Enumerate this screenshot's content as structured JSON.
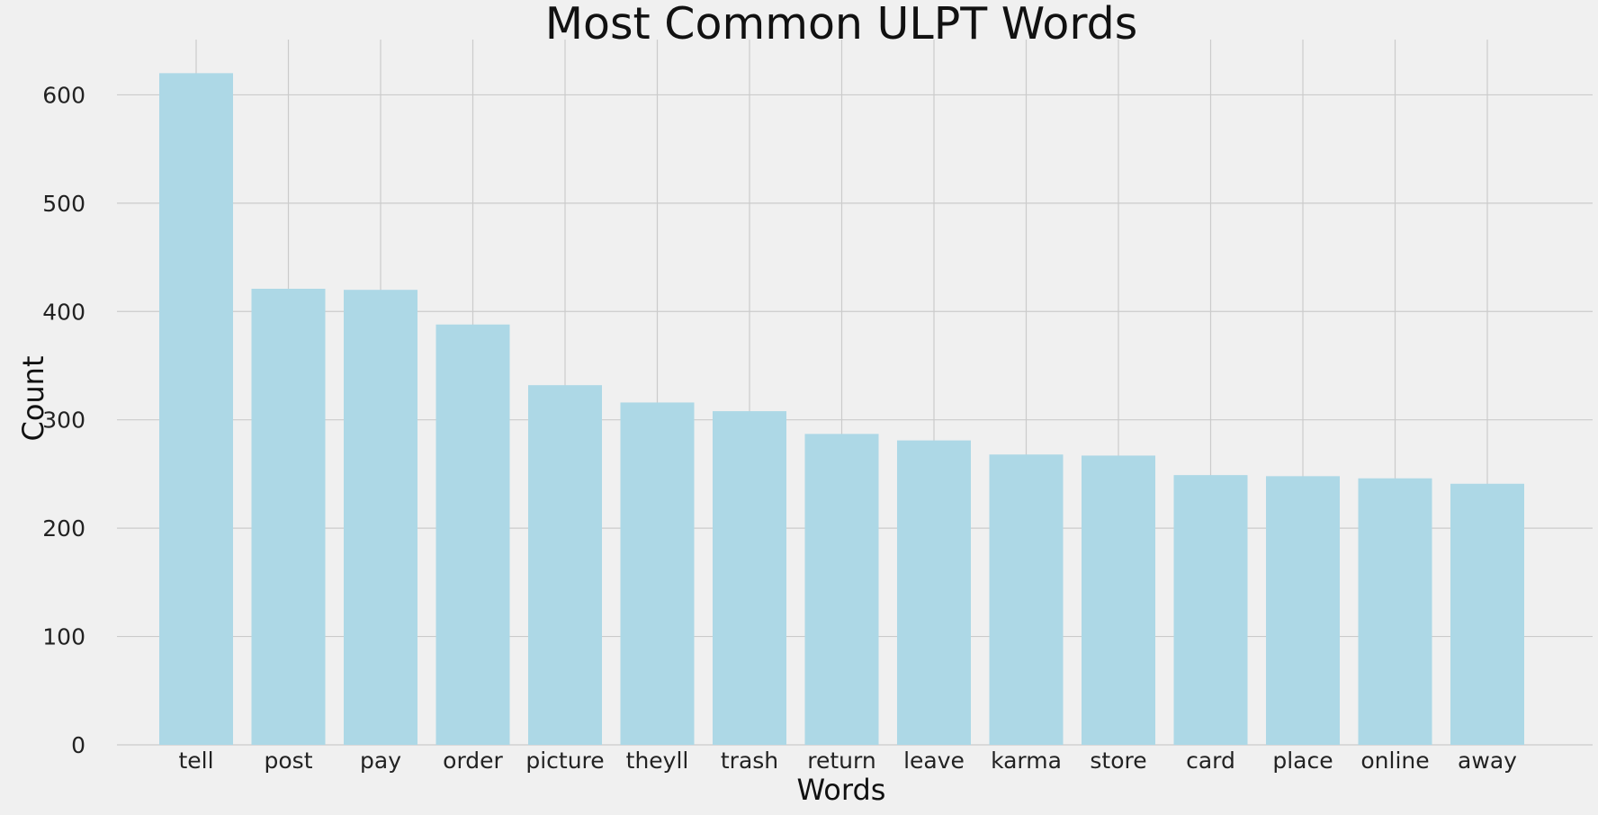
{
  "chart_data": {
    "type": "bar",
    "title": "Most Common ULPT Words",
    "xlabel": "Words",
    "ylabel": "Count",
    "categories": [
      "tell",
      "post",
      "pay",
      "order",
      "picture",
      "theyll",
      "trash",
      "return",
      "leave",
      "karma",
      "store",
      "card",
      "place",
      "online",
      "away"
    ],
    "values": [
      620,
      421,
      420,
      388,
      332,
      316,
      308,
      287,
      281,
      268,
      267,
      249,
      248,
      246,
      241
    ],
    "ylim": [
      0,
      651
    ],
    "yticks": [
      0,
      100,
      200,
      300,
      400,
      500,
      600
    ],
    "grid": true,
    "colors": {
      "bar": "#add8e6",
      "background": "#f0f0f0",
      "grid": "#cbcbcb",
      "text": "#222222"
    }
  }
}
